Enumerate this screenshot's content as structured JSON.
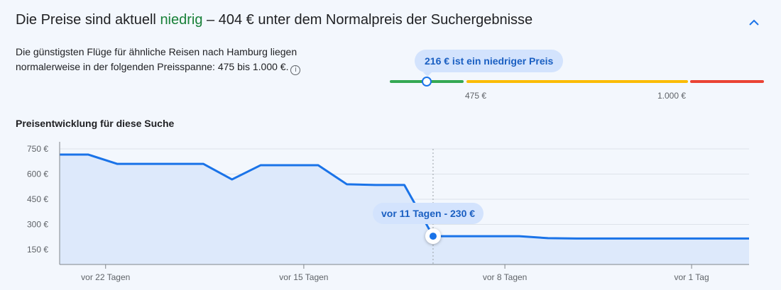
{
  "header": {
    "title_prefix": "Die Preise sind aktuell ",
    "title_status": "niedrig",
    "title_suffix": " – 404 € unter dem Normalpreis der Suchergebnisse",
    "collapse_icon": "chevron-up-icon"
  },
  "summary": {
    "text": "Die günstigsten Flüge für ähnliche Reisen nach Hamburg liegen normalerweise in der folgenden Preisspanne: 475 bis 1.000 €.",
    "info_icon": "i"
  },
  "price_range": {
    "tooltip": "216 € ist ein niedriger Preis",
    "low_label": "475 €",
    "high_label": "1.000 €",
    "current": 216,
    "colors": {
      "low": "#34a853",
      "mid": "#fbbc04",
      "high": "#ea4335"
    }
  },
  "history": {
    "title": "Preisentwicklung für diese Suche",
    "tooltip": "vor 11 Tagen - 230 €"
  },
  "chart_data": {
    "type": "area",
    "title": "Preisentwicklung für diese Suche",
    "xlabel": "",
    "ylabel": "",
    "x_days_ago": [
      24,
      23,
      22,
      21,
      20,
      19,
      18,
      17,
      16,
      15,
      14,
      13,
      12,
      11,
      10,
      9,
      8,
      7,
      6,
      5,
      4,
      3,
      2,
      1,
      0
    ],
    "values": [
      716,
      716,
      661,
      661,
      661,
      661,
      568,
      653,
      653,
      653,
      539,
      535,
      535,
      230,
      230,
      230,
      230,
      218,
      216,
      216,
      216,
      216,
      216,
      216,
      216
    ],
    "ylim": [
      60,
      770
    ],
    "yticks": [
      {
        "v": 750,
        "label": "750 €"
      },
      {
        "v": 600,
        "label": "600 €"
      },
      {
        "v": 450,
        "label": "450 €"
      },
      {
        "v": 300,
        "label": "300 €"
      },
      {
        "v": 150,
        "label": "150 €"
      }
    ],
    "xticks": [
      {
        "d": 22.4,
        "label": "vor 22 Tagen"
      },
      {
        "d": 15.5,
        "label": "vor 15 Tagen"
      },
      {
        "d": 8.5,
        "label": "vor 8 Tagen"
      },
      {
        "d": 2,
        "label": "vor 1 Tag"
      }
    ],
    "highlight_days_ago": 11,
    "color": "#1a73e8",
    "grid": true
  }
}
